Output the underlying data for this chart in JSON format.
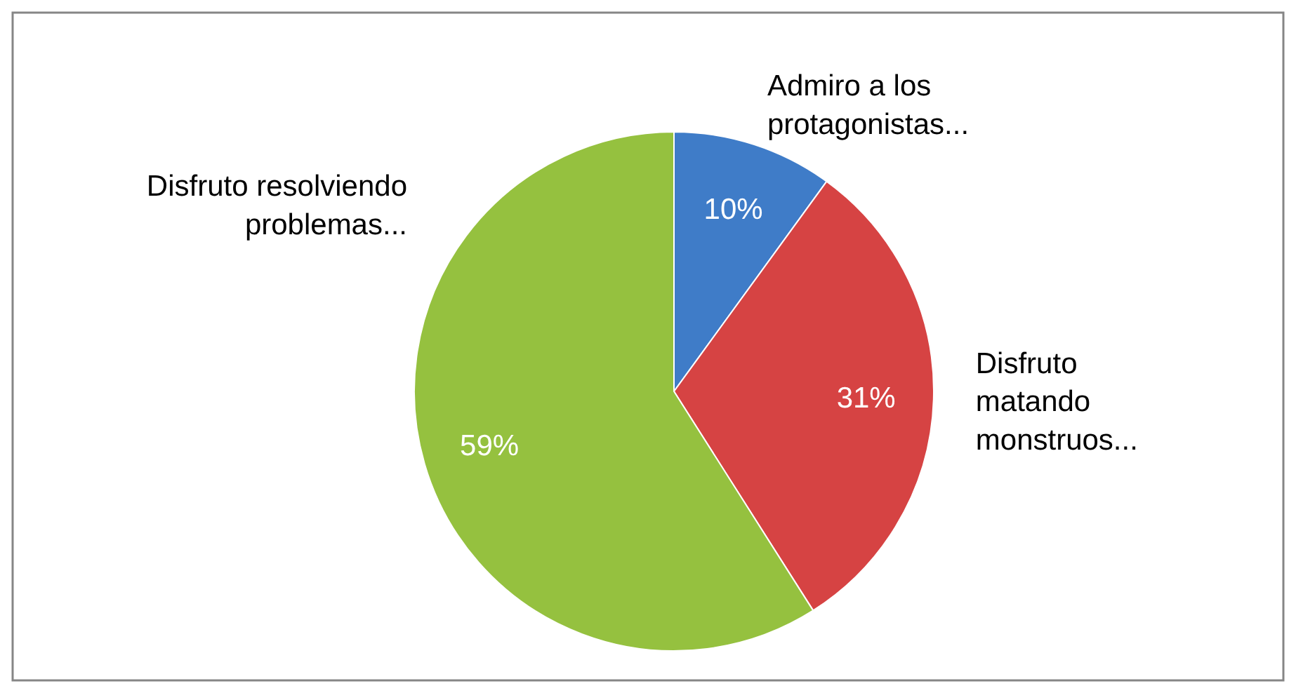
{
  "chart_data": {
    "type": "pie",
    "categories": [
      "Admiro a los protagonistas...",
      "Disfruto matando monstruos...",
      "Disfruto resolviendo problemas..."
    ],
    "values": [
      10,
      31,
      59
    ],
    "value_labels": [
      "10%",
      "31%",
      "59%"
    ],
    "colors": [
      "#3f7cc8",
      "#d64343",
      "#95c13f"
    ]
  }
}
